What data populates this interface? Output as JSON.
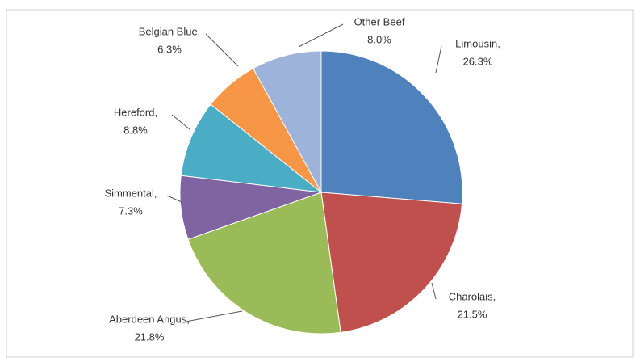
{
  "chart_data": {
    "type": "pie",
    "categories": [
      "Limousin,",
      "Charolais,",
      "Aberdeen Angus,",
      "Simmental,",
      "Hereford,",
      "Belgian Blue,",
      "Other Beef"
    ],
    "values": [
      26.3,
      21.5,
      21.8,
      7.3,
      8.8,
      6.3,
      8.0
    ],
    "value_labels": [
      "26.3%",
      "21.5%",
      "21.8%",
      "7.3%",
      "8.8%",
      "6.3%",
      "8.0%"
    ],
    "colors": [
      "#4f81bd",
      "#c0504d",
      "#9bbb59",
      "#8064a2",
      "#4bacc6",
      "#f79646",
      "#9db3da"
    ]
  }
}
